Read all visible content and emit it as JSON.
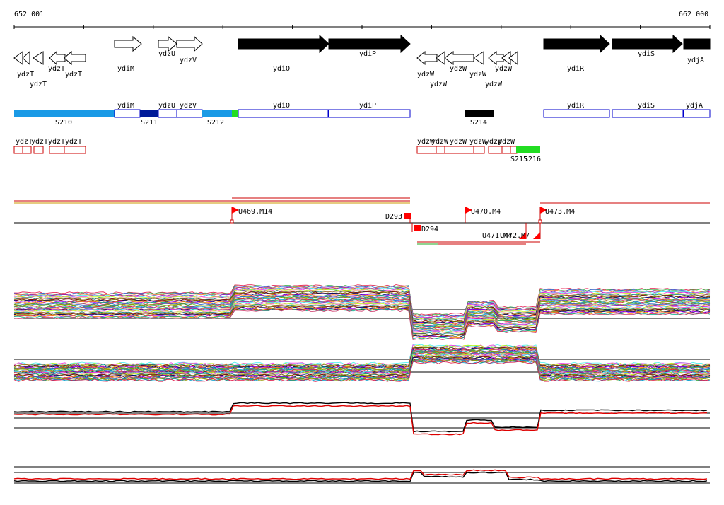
{
  "coords": {
    "start": "652 001",
    "end": "662 000"
  },
  "colors": {
    "gene_fill": "#000000",
    "segment_light": "#1a9ae6",
    "segment_dark": "#001a99",
    "segment_black": "#000000",
    "segment_green": "#22dd22",
    "box_blue": "#0000cc",
    "box_red": "#cc0000",
    "marker_red": "#ff0000"
  },
  "genes_track": [
    {
      "label": "ydzT",
      "strand": "-",
      "filled": false
    },
    {
      "label": "ydzT",
      "strand": "-",
      "filled": false
    },
    {
      "label": "ydzT",
      "strand": "-",
      "filled": false
    },
    {
      "label": "ydzT",
      "strand": "-",
      "filled": false
    },
    {
      "label": "ydiM",
      "strand": "+",
      "filled": false
    },
    {
      "label": "ydzU",
      "strand": "+",
      "filled": false
    },
    {
      "label": "ydzV",
      "strand": "+",
      "filled": false
    },
    {
      "label": "ydiO",
      "strand": "+",
      "filled": true
    },
    {
      "label": "ydiP",
      "strand": "+",
      "filled": true
    },
    {
      "label": "ydzW",
      "strand": "-",
      "filled": false
    },
    {
      "label": "ydzW",
      "strand": "-",
      "filled": false
    },
    {
      "label": "ydzW",
      "strand": "-",
      "filled": false
    },
    {
      "label": "ydzW",
      "strand": "-",
      "filled": false
    },
    {
      "label": "ydzW",
      "strand": "-",
      "filled": false
    },
    {
      "label": "ydzW",
      "strand": "-",
      "filled": false
    },
    {
      "label": "ydiR",
      "strand": "+",
      "filled": true
    },
    {
      "label": "ydiS",
      "strand": "+",
      "filled": true
    },
    {
      "label": "ydjA",
      "strand": "+",
      "filled": true
    }
  ],
  "segments": {
    "labels": [
      "S210",
      "S211",
      "S212",
      "S214",
      "S215",
      "S216"
    ],
    "gene_box_labels": [
      "ydiM",
      "ydzU",
      "ydzV",
      "ydiO",
      "ydiP",
      "ydiR",
      "ydiS",
      "ydjA"
    ]
  },
  "small_genes": {
    "labels": [
      "ydzT",
      "ydzT",
      "ydzT",
      "ydzT",
      "ydzW",
      "ydzW",
      "ydzW",
      "ydzW",
      "ydzW",
      "ydzW"
    ]
  },
  "transcripts": {
    "labels": [
      "U469.M14",
      "D293",
      "D294",
      "U470.M4",
      "U471.M4",
      "U472.M7",
      "U473.M4"
    ]
  },
  "expression_panels": [
    {
      "name": "upper-strand expression",
      "series": "many"
    },
    {
      "name": "lower-strand expression",
      "series": "many"
    },
    {
      "name": "upper-strand average",
      "series": [
        "black",
        "red"
      ]
    },
    {
      "name": "lower-strand average",
      "series": [
        "black",
        "red"
      ]
    }
  ]
}
